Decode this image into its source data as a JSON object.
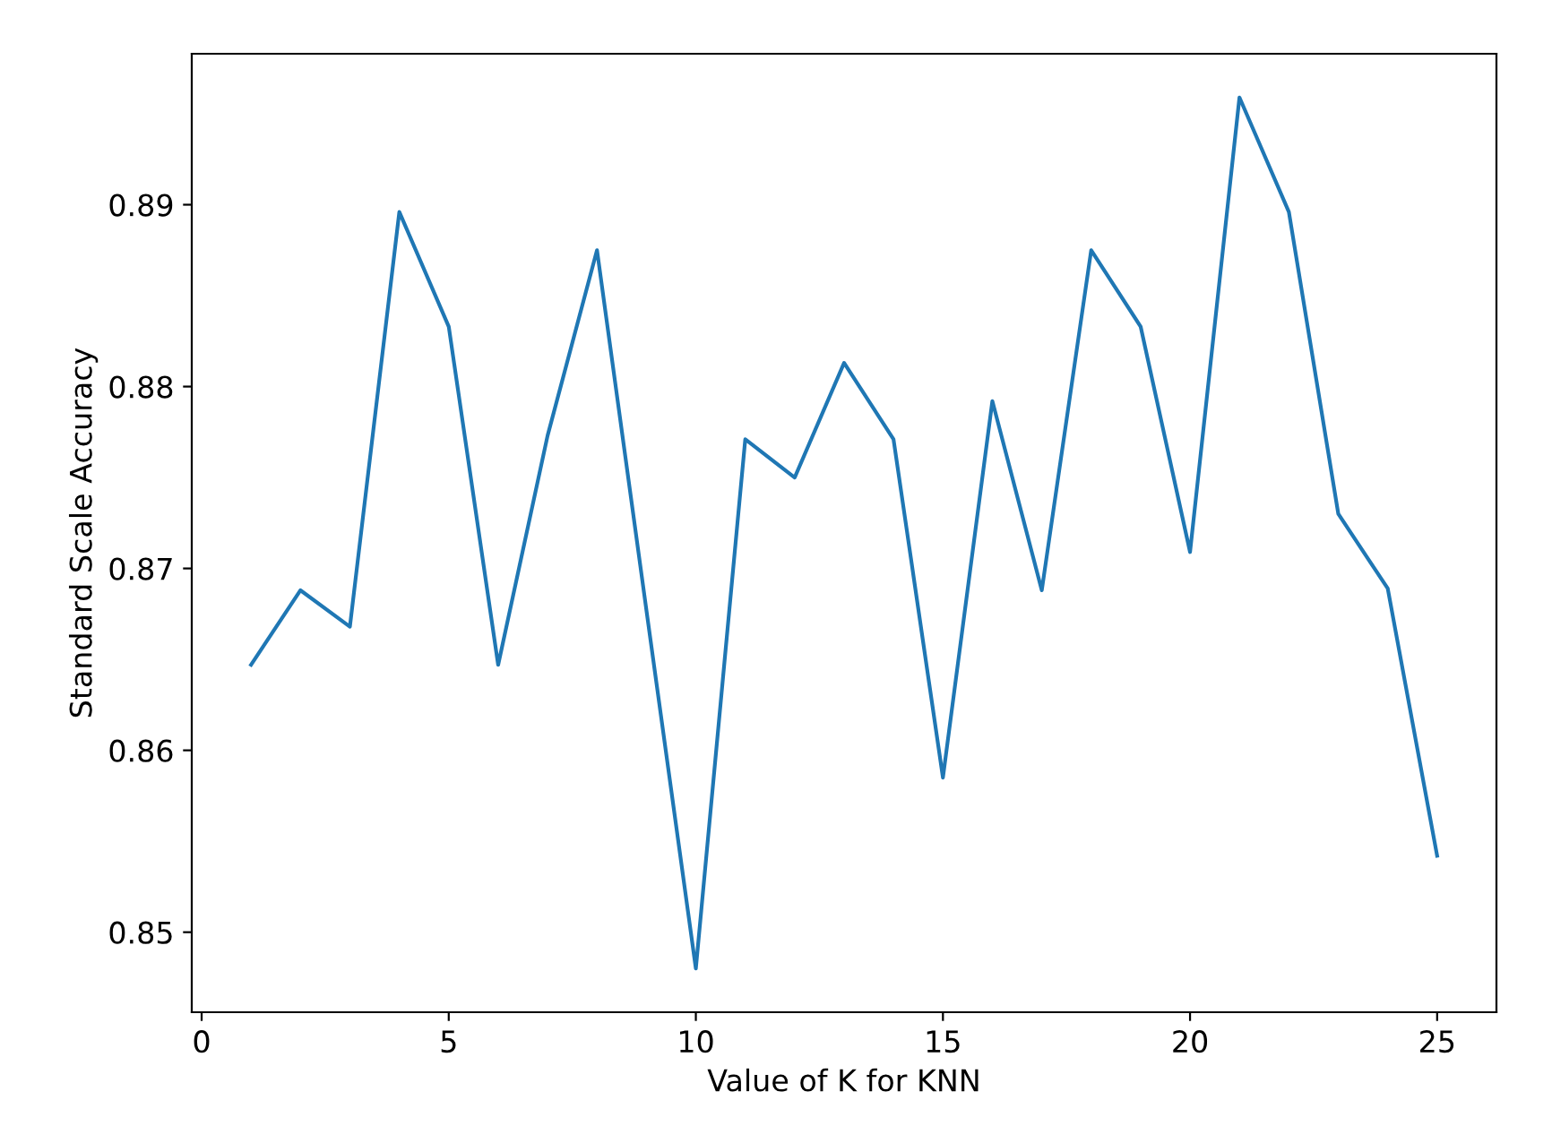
{
  "chart_data": {
    "type": "line",
    "xlabel": "Value of K for KNN",
    "ylabel": "Standard Scale Accuracy",
    "x": [
      1,
      2,
      3,
      4,
      5,
      6,
      7,
      8,
      9,
      10,
      11,
      12,
      13,
      14,
      15,
      16,
      17,
      18,
      19,
      20,
      21,
      22,
      23,
      24,
      25
    ],
    "series": [
      {
        "color": "#1f77b4",
        "values": [
          0.8647,
          0.8688,
          0.8668,
          0.8896,
          0.8833,
          0.8647,
          0.8773,
          0.8875,
          0.8677,
          0.848,
          0.8771,
          0.875,
          0.8813,
          0.8771,
          0.8585,
          0.8792,
          0.8688,
          0.8875,
          0.8833,
          0.8709,
          0.8959,
          0.8896,
          0.873,
          0.8689,
          0.8542
        ]
      }
    ],
    "xlim": [
      -0.2,
      26.2
    ],
    "ylim": [
      0.8456,
      0.8983
    ],
    "xticks": [
      0,
      5,
      10,
      15,
      20,
      25
    ],
    "yticks": [
      0.85,
      0.86,
      0.87,
      0.88,
      0.89
    ],
    "grid": false,
    "marker": "none",
    "line_style": "solid"
  }
}
